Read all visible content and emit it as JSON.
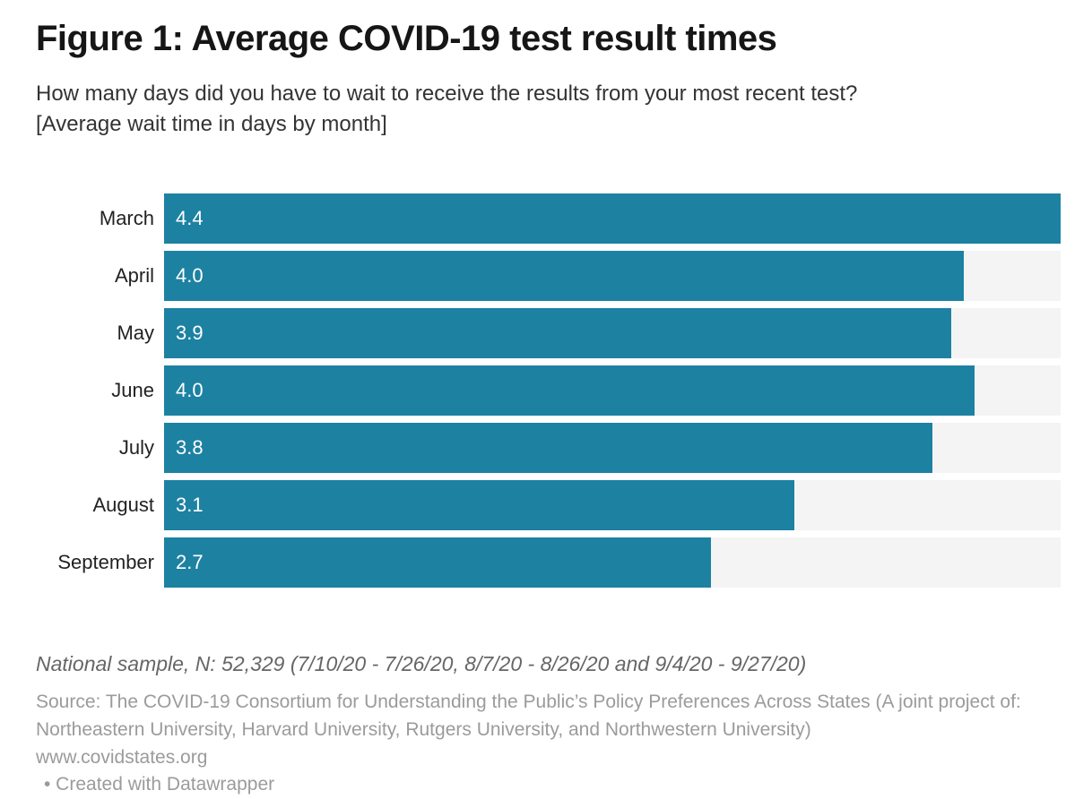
{
  "chart_data": {
    "type": "bar",
    "orientation": "horizontal",
    "title": "Figure 1: Average COVID-19 test result times",
    "subtitle": "How many days did you have to wait to receive the results from your most recent test?\n[Average wait time in days by month]",
    "categories": [
      "March",
      "April",
      "May",
      "June",
      "July",
      "August",
      "September"
    ],
    "values": [
      4.4,
      4.0,
      3.9,
      4.0,
      3.8,
      3.1,
      2.7
    ],
    "value_labels": [
      "4.4",
      "4.0",
      "3.9",
      "4.0",
      "3.8",
      "3.1",
      "2.7"
    ],
    "unit": "days",
    "xlim": [
      0,
      4.4
    ],
    "bar_width_pct": [
      100,
      89.2,
      87.8,
      90.4,
      85.7,
      70.3,
      61.0
    ],
    "grid": false,
    "legend": false,
    "axis_ticks": false,
    "bar_color": "#1d81a2",
    "track_color": "#f4f4f4",
    "note": "National sample, N: 52,329 (7/10/20 - 7/26/20, 8/7/20 - 8/26/20 and 9/4/20 - 9/27/20)",
    "source": "Source: The COVID-19 Consortium for Understanding the Public’s Policy Preferences Across States (A joint project of: Northeastern University, Harvard University, Rutgers University, and Northwestern University)\nwww.covidstates.org",
    "attribution": "• Created with Datawrapper"
  }
}
